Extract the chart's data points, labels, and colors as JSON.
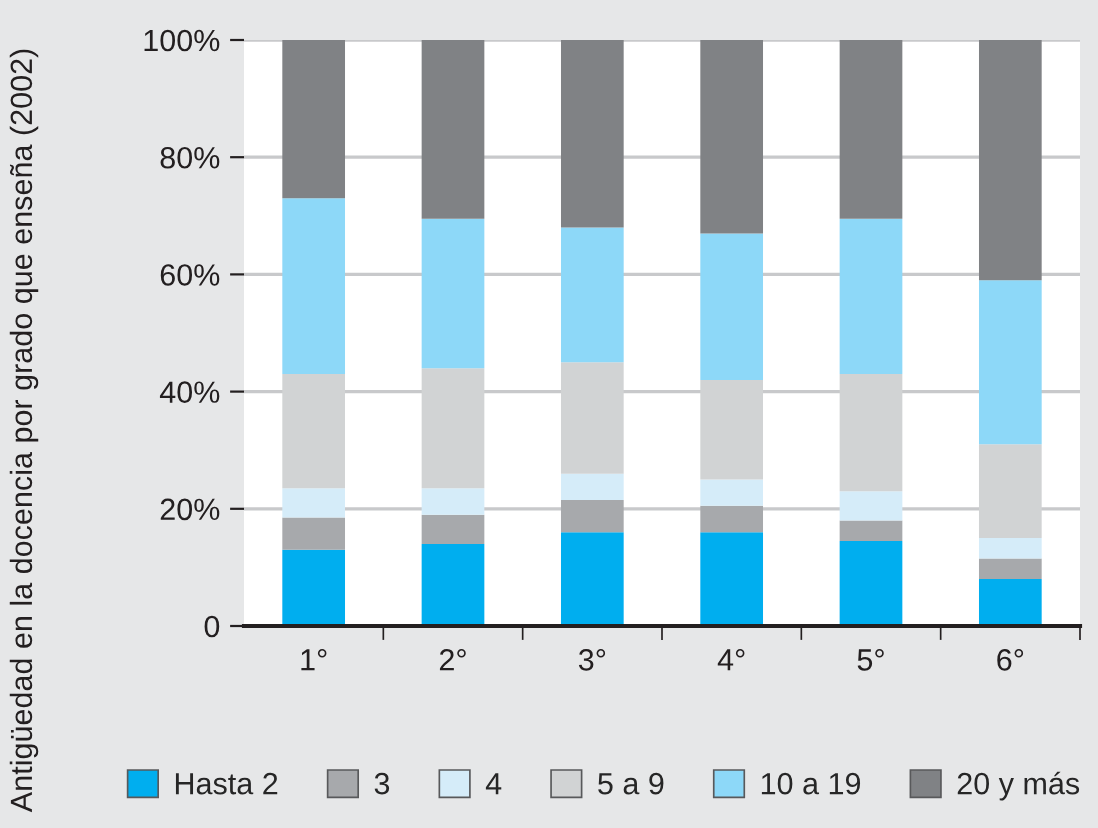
{
  "chart_data": {
    "type": "bar",
    "stacked": true,
    "ylabel": "Antigüedad en la docencia por grado que enseña (2002)",
    "categories": [
      "1°",
      "2°",
      "3°",
      "4°",
      "5°",
      "6°"
    ],
    "series": [
      {
        "name": "Hasta 2",
        "color": "#00aeef",
        "values": [
          13,
          14,
          16,
          16,
          14.5,
          8
        ]
      },
      {
        "name": "3",
        "color": "#a7a9ac",
        "values": [
          5.5,
          5,
          5.5,
          4.5,
          3.5,
          3.5
        ]
      },
      {
        "name": "4",
        "color": "#d5ecf9",
        "values": [
          5,
          4.5,
          4.5,
          4.5,
          5,
          3.5
        ]
      },
      {
        "name": "5 a 9",
        "color": "#d1d3d4",
        "values": [
          19.5,
          20.5,
          19,
          17,
          20,
          16
        ]
      },
      {
        "name": "10 a 19",
        "color": "#8dd8f8",
        "values": [
          30,
          25.5,
          23,
          25,
          26.5,
          28
        ]
      },
      {
        "name": "20 y más",
        "color": "#808285",
        "values": [
          27,
          30.5,
          32,
          33,
          30.5,
          41
        ]
      }
    ],
    "ylim": [
      0,
      100
    ],
    "yticks": [
      {
        "value": 0,
        "label": "0"
      },
      {
        "value": 20,
        "label": "20%"
      },
      {
        "value": 40,
        "label": "40%"
      },
      {
        "value": 60,
        "label": "60%"
      },
      {
        "value": 80,
        "label": "80%"
      },
      {
        "value": 100,
        "label": "100%"
      }
    ],
    "grid": "y",
    "legend": "bottom"
  }
}
